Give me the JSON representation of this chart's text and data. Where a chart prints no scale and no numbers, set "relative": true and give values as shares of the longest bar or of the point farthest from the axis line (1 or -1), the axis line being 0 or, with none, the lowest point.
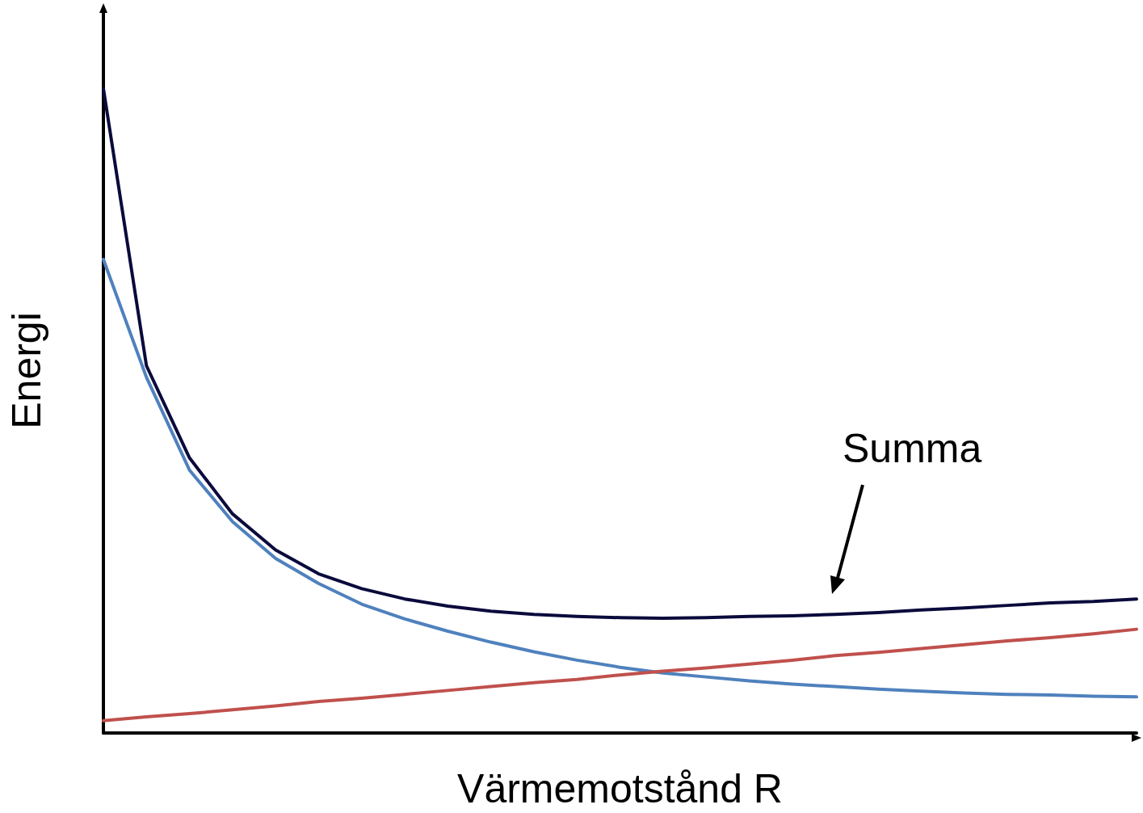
{
  "chart_data": {
    "type": "line",
    "relative": true,
    "xlabel": "Värmemotstånd R",
    "ylabel": "Energi",
    "annotations": [
      "Summa"
    ],
    "grid": false,
    "marker": "none",
    "categories": [
      null,
      null,
      null,
      null,
      null,
      null,
      null,
      null,
      null,
      null,
      null,
      null,
      null,
      null,
      null,
      null,
      null,
      null,
      null,
      null,
      null,
      null,
      null,
      null,
      null
    ],
    "series": [
      {
        "color": "#4f81bd",
        "values": [
          0.735,
          0.552,
          0.408,
          0.328,
          0.271,
          0.232,
          0.2,
          0.177,
          0.158,
          0.141,
          0.126,
          0.113,
          0.102,
          0.093,
          0.087,
          0.081,
          0.076,
          0.072,
          0.068,
          0.065,
          0.062,
          0.06,
          0.059,
          0.057,
          0.056
        ]
      },
      {
        "color": "#c0504d",
        "values": [
          0.019,
          0.025,
          0.03,
          0.036,
          0.042,
          0.049,
          0.054,
          0.06,
          0.066,
          0.072,
          0.078,
          0.083,
          0.09,
          0.096,
          0.101,
          0.107,
          0.113,
          0.12,
          0.125,
          0.131,
          0.137,
          0.143,
          0.148,
          0.154,
          0.161
        ]
      },
      {
        "color": "#0a0a3c",
        "values": [
          1,
          0.57,
          0.427,
          0.34,
          0.284,
          0.247,
          0.224,
          0.208,
          0.197,
          0.189,
          0.184,
          0.181,
          0.179,
          0.178,
          0.179,
          0.181,
          0.182,
          0.184,
          0.187,
          0.191,
          0.194,
          0.198,
          0.202,
          0.204,
          0.208
        ]
      }
    ]
  }
}
